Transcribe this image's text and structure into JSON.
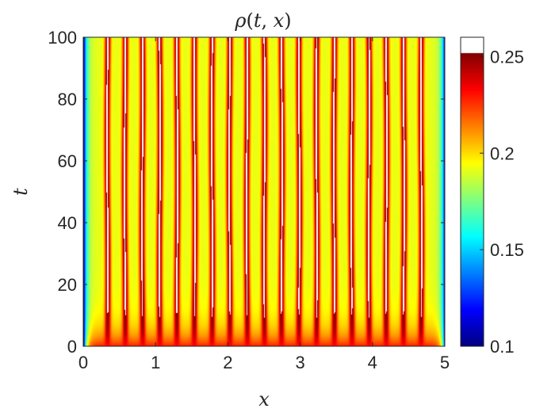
{
  "chart_data": {
    "type": "heatmap",
    "title": "ρ(t, x)",
    "xlabel": "x",
    "ylabel": "t",
    "xlim": [
      0,
      5
    ],
    "ylim": [
      0,
      100
    ],
    "x_ticks": [
      "0",
      "1",
      "2",
      "3",
      "4",
      "5"
    ],
    "y_ticks": [
      "0",
      "20",
      "40",
      "60",
      "80",
      "100"
    ],
    "colorbar": {
      "range": [
        0.1,
        0.26
      ],
      "ticks": [
        "0.1",
        "0.15",
        "0.2",
        "0.25"
      ],
      "colormap": "jet",
      "above_max_color": "#ffffff"
    },
    "stripes": {
      "count": 19,
      "x_first": 0.33,
      "x_last": 4.67,
      "peak_value": 0.26,
      "trough_value": 0.2,
      "formation_t": 5
    },
    "boundary_value": 0.1,
    "initial_value": 0.23
  }
}
